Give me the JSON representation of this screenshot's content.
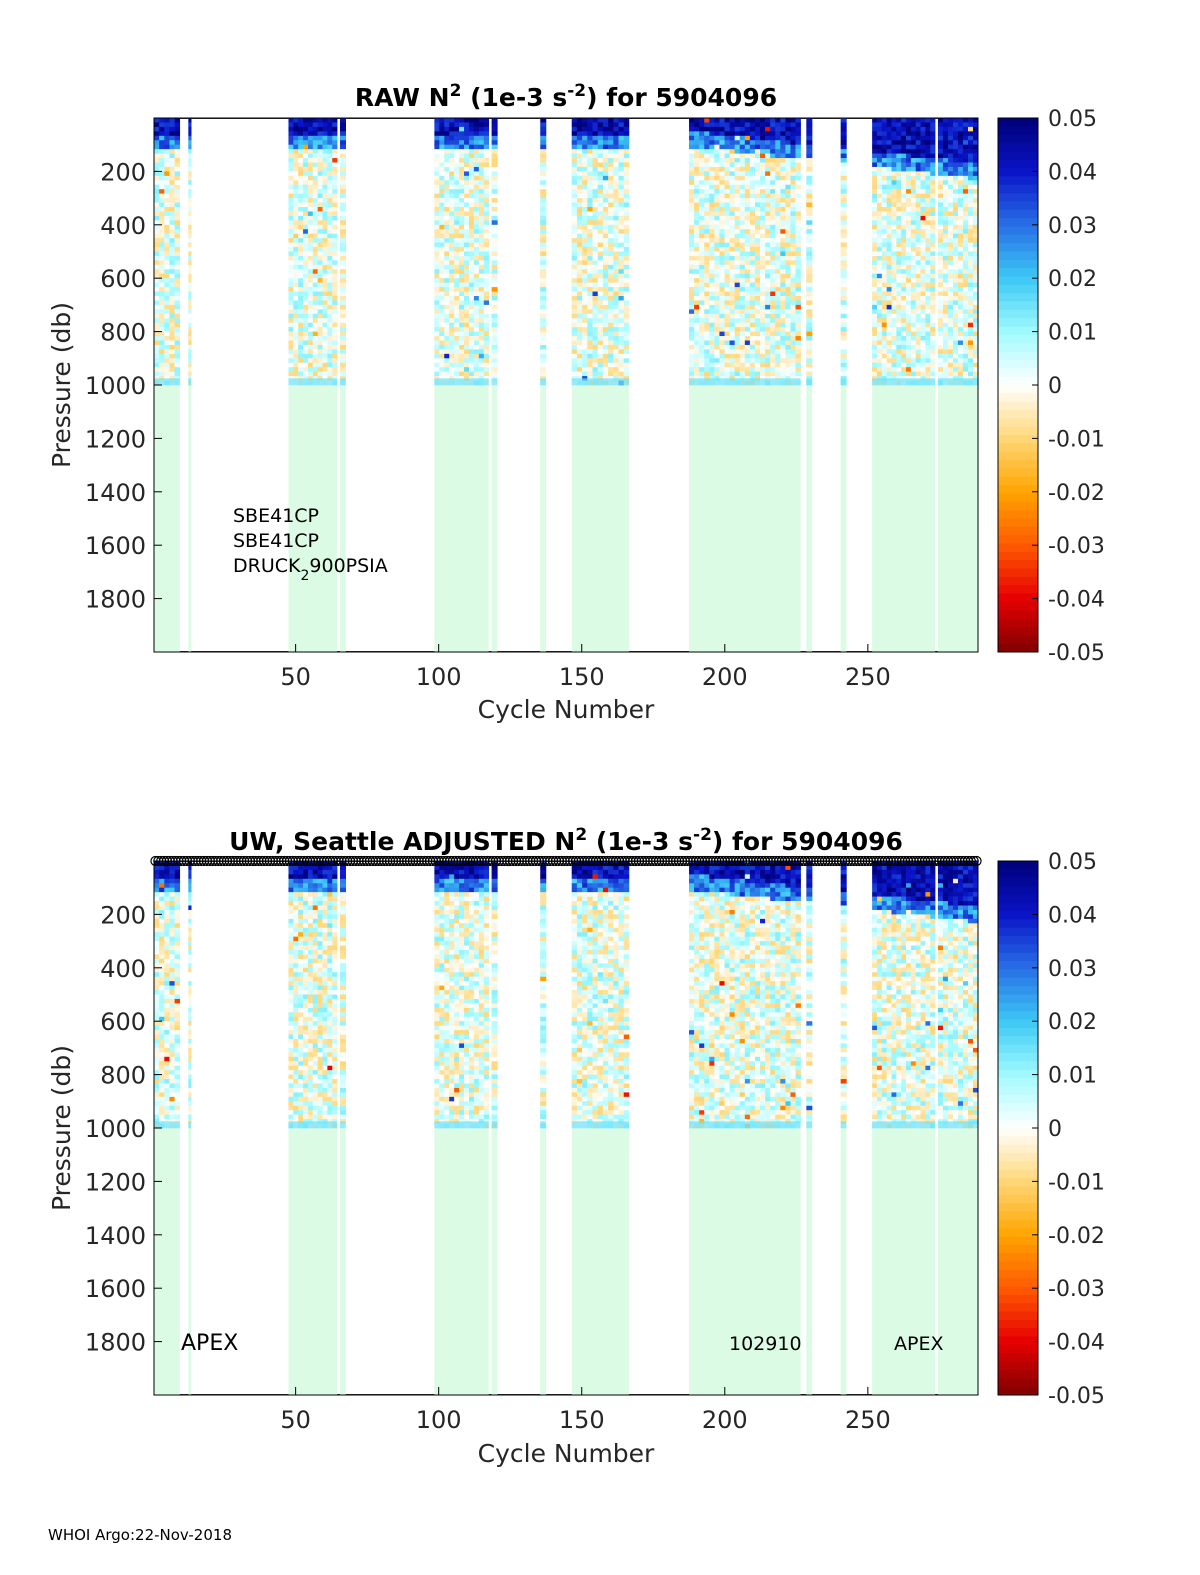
{
  "footer": "WHOI Argo:22-Nov-2018",
  "colorbar": {
    "ticks": [
      "0.05",
      "0.04",
      "0.03",
      "0.02",
      "0.01",
      "0",
      "-0.01",
      "-0.02",
      "-0.03",
      "-0.04",
      "-0.05"
    ],
    "range": [
      -0.05,
      0.05
    ]
  },
  "chart_data": [
    {
      "type": "heatmap",
      "title": {
        "prefix": "RAW N",
        "sup1": "2",
        "mid": " (1e-3 s",
        "sup2": "-2",
        "suffix": ") for 5904096"
      },
      "xlabel": "Cycle Number",
      "ylabel": "Pressure (db)",
      "xlim": [
        1,
        288
      ],
      "ylim": [
        0,
        2000
      ],
      "xticks": [
        "50",
        "100",
        "150",
        "200",
        "250"
      ],
      "yticks": [
        "200",
        "400",
        "600",
        "800",
        "1000",
        "1200",
        "1400",
        "1600",
        "1800"
      ],
      "annotations": [
        {
          "text": "SBE41CP"
        },
        {
          "text": "SBE41CP"
        },
        {
          "text": "DRUCK",
          "sub": "2",
          "after": "900PSIA"
        }
      ]
    },
    {
      "type": "heatmap",
      "title": {
        "prefix": "UW, Seattle  ADJUSTED N",
        "sup1": "2",
        "mid": " (1e-3 s",
        "sup2": "-2",
        "suffix": ") for 5904096"
      },
      "xlabel": "Cycle Number",
      "ylabel": "Pressure (db)",
      "xlim": [
        1,
        288
      ],
      "ylim": [
        0,
        2000
      ],
      "xticks": [
        "50",
        "100",
        "150",
        "200",
        "250"
      ],
      "yticks": [
        "200",
        "400",
        "600",
        "800",
        "1000",
        "1200",
        "1400",
        "1600",
        "1800"
      ],
      "annotations": [
        {
          "text": "APEX"
        },
        {
          "text": "102910"
        },
        {
          "text": "APEX"
        }
      ]
    }
  ],
  "data_segments": [
    {
      "start": 1,
      "end": 9
    },
    {
      "start": 13,
      "end": 13
    },
    {
      "start": 48,
      "end": 64
    },
    {
      "start": 66,
      "end": 67
    },
    {
      "start": 99,
      "end": 117
    },
    {
      "start": 119,
      "end": 120
    },
    {
      "start": 136,
      "end": 137
    },
    {
      "start": 147,
      "end": 166
    },
    {
      "start": 188,
      "end": 226
    },
    {
      "start": 229,
      "end": 230
    },
    {
      "start": 241,
      "end": 242
    },
    {
      "start": 252,
      "end": 273
    },
    {
      "start": 275,
      "end": 288
    }
  ]
}
